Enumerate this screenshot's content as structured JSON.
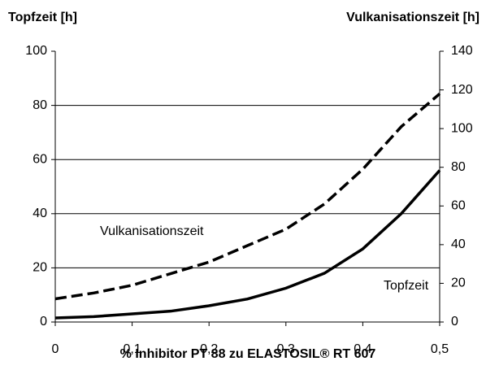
{
  "chart_data": {
    "type": "line",
    "ylabel": "Topfzeit [h]",
    "y2label": "Vulkanisationszeit [h]",
    "xlabel": "% Inhibitor PT 88 zu ELASTOSIL® RT 607",
    "x": [
      0,
      0.05,
      0.1,
      0.15,
      0.2,
      0.25,
      0.3,
      0.35,
      0.4,
      0.45,
      0.5
    ],
    "series": [
      {
        "name": "Topfzeit",
        "color": "#000000",
        "style": "solid",
        "axis": "y",
        "values": [
          1.5,
          2,
          3,
          4,
          6,
          8.5,
          12.5,
          18,
          27,
          40,
          56
        ]
      },
      {
        "name": "Vulkanisationszeit",
        "color": "#000000",
        "style": "dashed",
        "axis": "y2",
        "values": [
          12,
          15,
          19,
          25,
          31,
          39.5,
          48,
          61,
          79,
          101,
          118
        ]
      }
    ],
    "xlim": [
      0,
      0.5
    ],
    "xticks": [
      0,
      {
        "value": 0.1,
        "label": "0,1"
      },
      {
        "value": 0.2,
        "label": "0,2"
      },
      {
        "value": 0.3,
        "label": "0,3"
      },
      {
        "value": 0.4,
        "label": "0,4"
      },
      {
        "value": 0.5,
        "label": "0,5"
      }
    ],
    "ylim": [
      0,
      100
    ],
    "yticks": [
      0,
      20,
      40,
      60,
      80,
      100
    ],
    "y2lim": [
      0,
      140
    ],
    "y2ticks": [
      0,
      20,
      40,
      60,
      80,
      100,
      120,
      140
    ],
    "grid": true
  }
}
